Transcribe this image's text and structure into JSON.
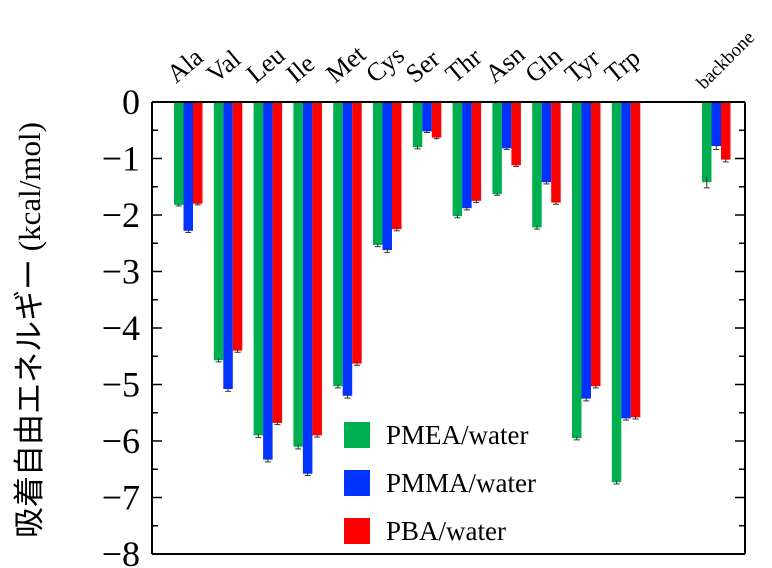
{
  "chart_data": {
    "type": "bar",
    "title": "",
    "xlabel": "",
    "ylabel": "吸着自由エネルギー (kcal/mol)",
    "ylim": [
      -8,
      0
    ],
    "yticks": [
      "0",
      "−1",
      "−2",
      "−3",
      "−4",
      "−5",
      "−6",
      "−7",
      "−8"
    ],
    "grid": false,
    "legend_position": "bottom-center",
    "categories": [
      "Ala",
      "Val",
      "Leu",
      "Ile",
      "Met",
      "Cys",
      "Ser",
      "Thr",
      "Asn",
      "Gln",
      "Tyr",
      "Trp",
      "backbone"
    ],
    "series": [
      {
        "name": "PMEA/water",
        "color": "#00b050",
        "values": [
          -1.82,
          -4.57,
          -5.9,
          -6.1,
          -5.03,
          -2.53,
          -0.8,
          -2.02,
          -1.63,
          -2.22,
          -5.95,
          -6.73,
          -1.42
        ],
        "errors": [
          0.02,
          0.03,
          0.04,
          0.04,
          0.03,
          0.03,
          0.03,
          0.03,
          0.02,
          0.03,
          0.03,
          0.03,
          0.1
        ]
      },
      {
        "name": "PMMA/water",
        "color": "#0033ff",
        "values": [
          -2.28,
          -5.08,
          -6.33,
          -6.58,
          -5.2,
          -2.62,
          -0.52,
          -1.88,
          -0.82,
          -1.42,
          -5.25,
          -5.6,
          -0.78
        ],
        "errors": [
          0.03,
          0.04,
          0.04,
          0.03,
          0.04,
          0.04,
          0.02,
          0.03,
          0.02,
          0.03,
          0.04,
          0.03,
          0.06
        ]
      },
      {
        "name": "PBA/water",
        "color": "#ff0000",
        "values": [
          -1.8,
          -4.4,
          -5.68,
          -5.9,
          -4.63,
          -2.25,
          -0.63,
          -1.75,
          -1.12,
          -1.78,
          -5.03,
          -5.58,
          -1.02
        ],
        "errors": [
          0.02,
          0.03,
          0.03,
          0.03,
          0.03,
          0.03,
          0.02,
          0.03,
          0.02,
          0.03,
          0.03,
          0.03,
          0.04
        ]
      }
    ]
  }
}
